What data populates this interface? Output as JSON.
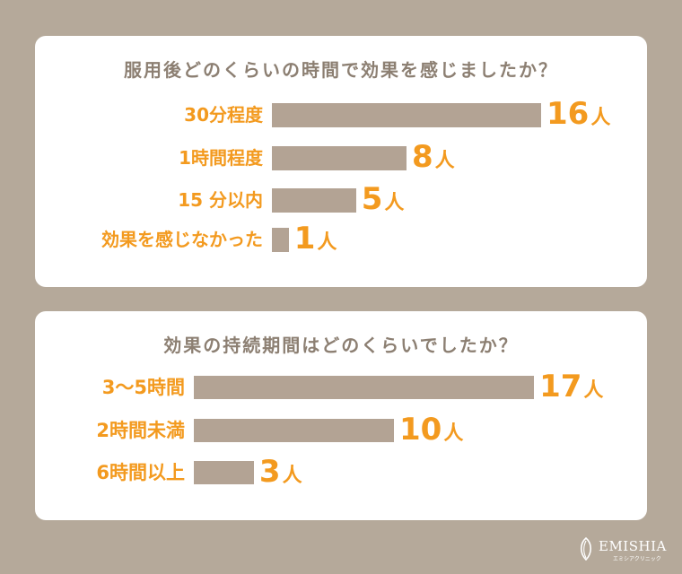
{
  "chart_data": [
    {
      "type": "bar",
      "orientation": "horizontal",
      "title": "服用後どのくらいの時間で効果を感じましたか？",
      "categories": [
        "30分程度",
        "1時間程度",
        "15 分以内",
        "効果を感じなかった"
      ],
      "values": [
        16,
        8,
        5,
        1
      ],
      "unit": "人"
    },
    {
      "type": "bar",
      "orientation": "horizontal",
      "title": "効果の持続期間はどのくらいでしたか？",
      "categories": [
        "3～5時間",
        "2時間未満",
        "6時間以上"
      ],
      "values": [
        17,
        10,
        3
      ],
      "unit": "人"
    }
  ],
  "colors": {
    "background": "#b5a99a",
    "card": "#ffffff",
    "bar": "#b3a394",
    "accent": "#f39a1f",
    "title_text": "#8c7f72"
  },
  "logo": {
    "name": "EMISHIA",
    "subtitle": "エミシアクリニック",
    "icon": "leaf-logo-icon"
  }
}
